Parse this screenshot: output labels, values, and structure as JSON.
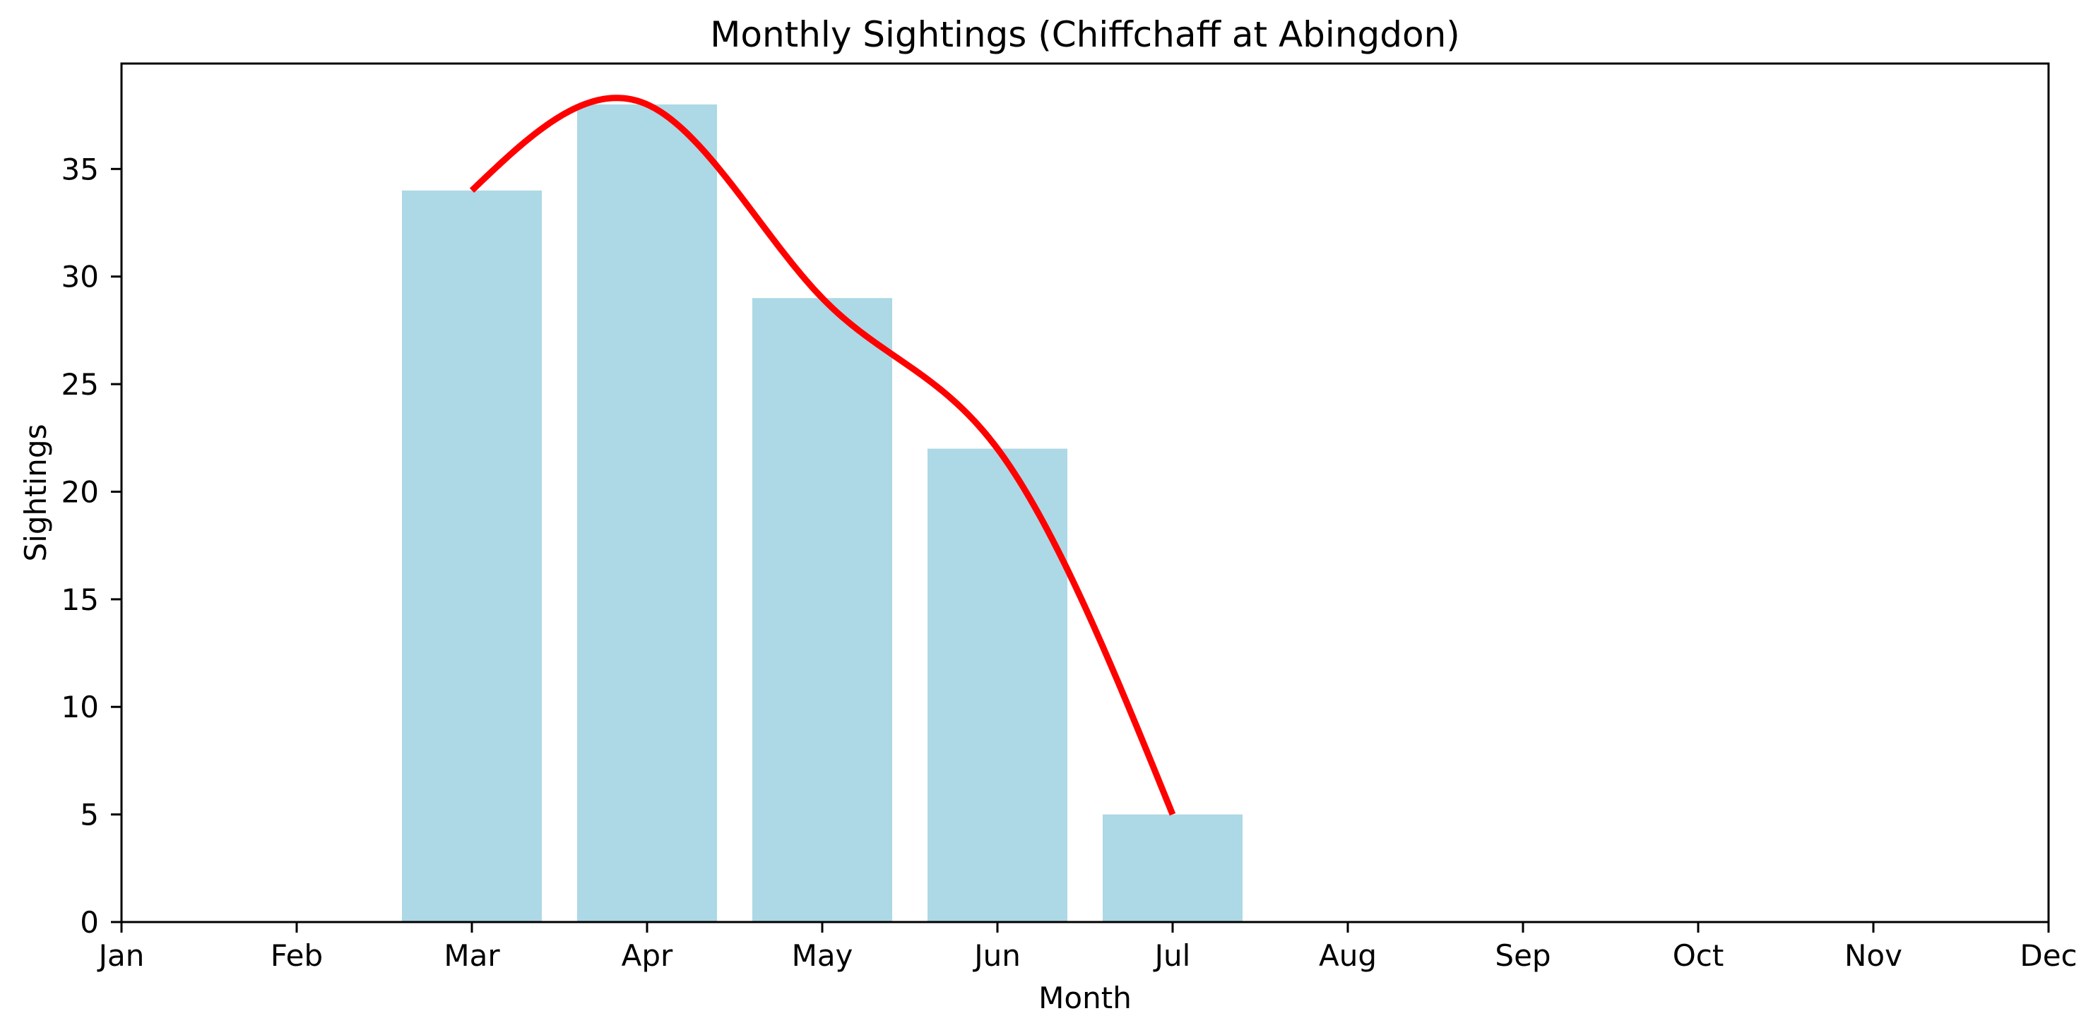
{
  "chart_data": {
    "type": "bar",
    "title": "Monthly Sightings (Chiffchaff at Abingdon)",
    "xlabel": "Month",
    "ylabel": "Sightings",
    "categories": [
      "Jan",
      "Feb",
      "Mar",
      "Apr",
      "May",
      "Jun",
      "Jul",
      "Aug",
      "Sep",
      "Oct",
      "Nov",
      "Dec"
    ],
    "series": [
      {
        "name": "monthly-sightings-bars",
        "type": "bar",
        "color": "#ADD8E6",
        "values": [
          null,
          null,
          34,
          38,
          29,
          22,
          5,
          null,
          null,
          null,
          null,
          null
        ]
      },
      {
        "name": "smoothed-trend-line",
        "type": "line",
        "smooth": "natural-cubic-spline",
        "color": "#FF0000",
        "x": [
          "Mar",
          "Apr",
          "May",
          "Jun",
          "Jul"
        ],
        "values": [
          34,
          38,
          29,
          22,
          5
        ]
      }
    ],
    "yticks": [
      0,
      5,
      10,
      15,
      20,
      25,
      30,
      35
    ],
    "ylim": [
      0,
      39.9
    ],
    "grid": false,
    "legend": null,
    "colors": {
      "bar_fill": "#ADD8E6",
      "line_stroke": "#FF0000",
      "axis": "#000000",
      "background": "#FFFFFF"
    }
  }
}
